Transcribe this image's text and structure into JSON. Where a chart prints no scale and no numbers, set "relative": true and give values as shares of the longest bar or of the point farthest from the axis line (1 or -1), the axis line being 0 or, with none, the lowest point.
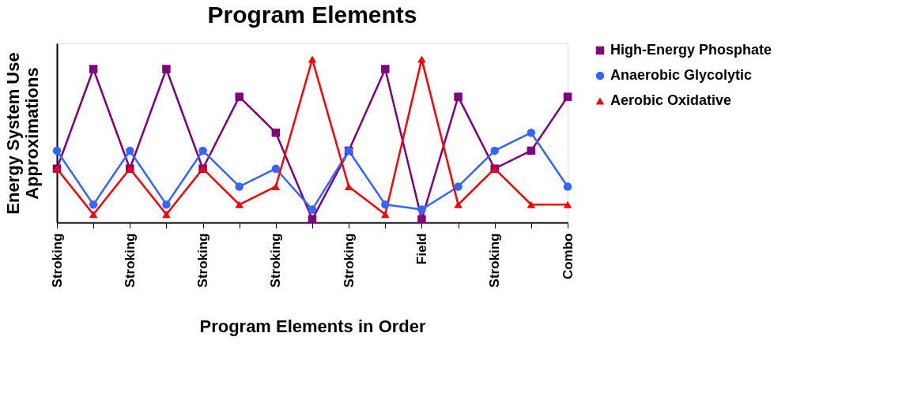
{
  "chart_data": {
    "type": "line",
    "title": "Program Elements",
    "xlabel": "Program Elements in Order",
    "ylabel": "Energy System Use Approximations",
    "relative": true,
    "legend": "right",
    "grid": false,
    "categories": [
      "Stroking",
      null,
      "Stroking",
      null,
      "Stroking",
      null,
      "Stroking",
      null,
      "Stroking",
      null,
      "Field",
      null,
      "Stroking",
      null,
      "Combo"
    ],
    "series": [
      {
        "name": "High-Energy Phosphate",
        "color": "#800080",
        "marker": "square",
        "values": [
          0.33,
          0.94,
          0.33,
          0.94,
          0.33,
          0.77,
          0.55,
          0.02,
          0.44,
          0.94,
          0.02,
          0.77,
          0.33,
          0.44,
          0.77
        ]
      },
      {
        "name": "Anaerobic Glycolytic",
        "color": "#3366ff",
        "marker": "circle",
        "values": [
          0.44,
          0.11,
          0.44,
          0.11,
          0.44,
          0.22,
          0.33,
          0.08,
          0.44,
          0.11,
          0.08,
          0.22,
          0.44,
          0.55,
          0.22
        ]
      },
      {
        "name": "Aerobic Oxidative",
        "color": "#ff0000",
        "marker": "triangle",
        "values": [
          0.33,
          0.05,
          0.33,
          0.05,
          0.33,
          0.11,
          0.22,
          1.0,
          0.22,
          0.05,
          1.0,
          0.11,
          0.33,
          0.11,
          0.11
        ]
      }
    ]
  }
}
